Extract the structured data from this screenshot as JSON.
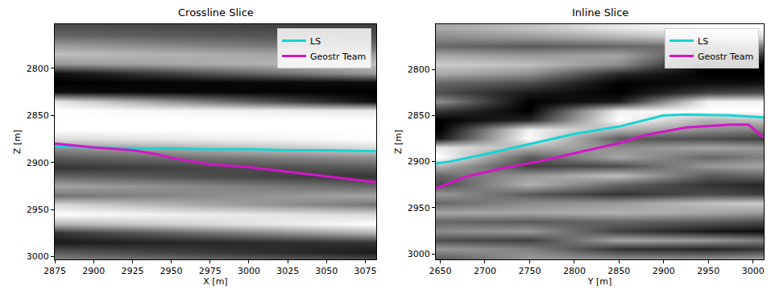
{
  "chart_data": [
    {
      "type": "line",
      "title": "Crossline Slice",
      "x_label": "X [m]",
      "y_label": "Z [m]",
      "xlim": [
        2875,
        3082
      ],
      "xticks": [
        2875,
        2900,
        2925,
        2950,
        2975,
        3000,
        3025,
        3050,
        3075
      ],
      "ylim": [
        3003,
        2753
      ],
      "yticks": [
        2800,
        2850,
        2900,
        2950,
        3000
      ],
      "grid": false,
      "legend": "upper right",
      "background": {
        "type": "heatmap",
        "clim": [
          -1,
          1
        ],
        "cell_x": [
          2875,
          2975,
          3082
        ],
        "cell_z": [
          2755,
          2765,
          2775,
          2785,
          2795,
          2805,
          2815,
          2825,
          2835,
          2845,
          2855,
          2865,
          2875,
          2885,
          2895,
          2905,
          2915,
          2925,
          2935,
          2945,
          2955,
          2965,
          2975,
          2985,
          2995,
          3005
        ],
        "cells": [
          [
            -0.4,
            -0.2,
            0.2,
            0.5,
            0.2,
            -0.9,
            -1,
            -0.9,
            0.8,
            1,
            1,
            1,
            0.7,
            0.1,
            -0.3,
            -0.6,
            -0.2,
            0.3,
            -0.1,
            0.7,
            1,
            0.4,
            -0.6,
            -0.8,
            -0.3,
            0.1
          ],
          [
            -0.45,
            -0.3,
            0,
            0.35,
            0.35,
            -0.35,
            -0.95,
            -0.95,
            -0.05,
            0.9,
            1,
            1,
            0.85,
            0.4,
            -0.1,
            -0.45,
            -0.4,
            0.05,
            0.1,
            0.3,
            0.85,
            0.7,
            -0.1,
            -0.7,
            -0.55,
            -0.1
          ],
          [
            -0.5,
            -0.4,
            -0.2,
            0.2,
            0.5,
            0.2,
            -0.9,
            -1,
            -0.9,
            0.8,
            1,
            1,
            1,
            0.7,
            0.1,
            -0.3,
            -0.6,
            -0.2,
            0.3,
            -0.1,
            0.7,
            1,
            0.4,
            -0.6,
            -0.8,
            -0.3
          ]
        ]
      },
      "series": [
        {
          "name": "LS",
          "color": "#17d4d4",
          "x": [
            2875,
            2900,
            2925,
            2950,
            2975,
            3000,
            3025,
            3050,
            3082
          ],
          "values": [
            2883,
            2884,
            2885,
            2885,
            2886,
            2886,
            2887,
            2887,
            2888
          ]
        },
        {
          "name": "Geostr Team",
          "color": "#d415c9",
          "x": [
            2875,
            2900,
            2925,
            2940,
            2950,
            2975,
            3000,
            3025,
            3050,
            3082
          ],
          "values": [
            2880,
            2884,
            2887,
            2891,
            2895,
            2902,
            2905,
            2910,
            2915,
            2921
          ]
        }
      ]
    },
    {
      "type": "line",
      "title": "Inline Slice",
      "x_label": "Y [m]",
      "y_label": "Z [m]",
      "xlim": [
        2645,
        3012
      ],
      "xticks": [
        2650,
        2700,
        2750,
        2800,
        2850,
        2900,
        2950,
        3000
      ],
      "ylim": [
        3006,
        2751
      ],
      "yticks": [
        2800,
        2850,
        2900,
        2950,
        3000
      ],
      "grid": false,
      "legend": "upper right",
      "background": {
        "type": "heatmap",
        "clim": [
          -1,
          1
        ],
        "cell_x": [
          2650,
          2750,
          2850,
          2950,
          3010
        ],
        "cell_z": [
          2755,
          2765,
          2775,
          2785,
          2795,
          2805,
          2815,
          2825,
          2835,
          2845,
          2855,
          2865,
          2875,
          2885,
          2895,
          2905,
          2915,
          2925,
          2935,
          2945,
          2955,
          2965,
          2975,
          2985,
          2995,
          3005
        ],
        "cells": [
          [
            0.3,
            0.1,
            -0.2,
            0.3,
            0.6,
            0.3,
            -0.2,
            -0.4,
            0.1,
            -0.6,
            -1,
            -1,
            -0.8,
            0.8,
            1,
            0.4,
            -0.2,
            -0.4,
            0.2,
            -0.2,
            0.3,
            -0.2,
            0.1,
            -0.4,
            0.2,
            -0.3
          ],
          [
            0.5,
            0.2,
            -0.3,
            0.2,
            0.5,
            0.1,
            -0.4,
            -0.8,
            -1,
            -1,
            -0.7,
            0.9,
            1,
            0.4,
            -0.3,
            -0.5,
            0.2,
            0.4,
            -0.3,
            0.1,
            0.3,
            -0.3,
            0.2,
            -0.5,
            0,
            0.2
          ],
          [
            0.8,
            0.4,
            -0.2,
            0.3,
            0.1,
            -0.7,
            -1,
            -1,
            -0.8,
            0.9,
            1,
            0.4,
            -0.3,
            0.1,
            0.3,
            -0.4,
            0.5,
            -0.2,
            -0.6,
            0.2,
            0.4,
            -0.2,
            -0.5,
            0.3,
            -0.6,
            0.1
          ],
          [
            1,
            0.6,
            -0.1,
            -0.6,
            -1,
            -1,
            -0.9,
            -0.5,
            0.9,
            1,
            0.4,
            0.1,
            -0.4,
            0.3,
            -0.2,
            0.2,
            -0.3,
            -0.6,
            -0.4,
            0.5,
            0.3,
            -0.3,
            -0.8,
            0.2,
            -0.7,
            0.1
          ],
          [
            1,
            0.7,
            0,
            -0.6,
            -1,
            -1,
            -0.9,
            -0.4,
            0.9,
            1,
            0.5,
            0,
            -0.5,
            0.2,
            0,
            0.3,
            -0.2,
            -0.7,
            -0.5,
            0.6,
            0.2,
            -0.4,
            -0.9,
            0,
            -0.6,
            0.2
          ]
        ]
      },
      "series": [
        {
          "name": "LS",
          "color": "#17d4d4",
          "x": [
            2645,
            2660,
            2700,
            2750,
            2800,
            2850,
            2875,
            2900,
            2925,
            2975,
            3012
          ],
          "values": [
            2902,
            2900,
            2892,
            2881,
            2870,
            2862,
            2856,
            2850,
            2849,
            2850,
            2852
          ]
        },
        {
          "name": "Geostr Team",
          "color": "#d415c9",
          "x": [
            2645,
            2680,
            2720,
            2760,
            2800,
            2850,
            2880,
            2925,
            2975,
            2995,
            3012
          ],
          "values": [
            2929,
            2916,
            2907,
            2900,
            2891,
            2880,
            2871,
            2863,
            2860,
            2860,
            2874
          ]
        }
      ]
    }
  ]
}
